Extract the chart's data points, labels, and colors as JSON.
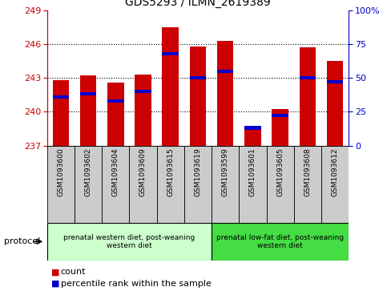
{
  "title": "GDS5293 / ILMN_2619389",
  "samples": [
    "GSM1093600",
    "GSM1093602",
    "GSM1093604",
    "GSM1093609",
    "GSM1093615",
    "GSM1093619",
    "GSM1093599",
    "GSM1093601",
    "GSM1093605",
    "GSM1093608",
    "GSM1093612"
  ],
  "counts": [
    242.8,
    243.2,
    242.55,
    243.3,
    247.5,
    245.8,
    246.3,
    238.4,
    240.2,
    245.7,
    244.5
  ],
  "percentiles": [
    36,
    38,
    33,
    40,
    68,
    50,
    55,
    13,
    22,
    50,
    47
  ],
  "ymin": 237,
  "ymax": 249,
  "yticks": [
    237,
    240,
    243,
    246,
    249
  ],
  "y2ticks_vals": [
    0,
    25,
    50,
    75,
    100
  ],
  "y2ticks_labels": [
    "0",
    "25",
    "50",
    "75",
    "100%"
  ],
  "bar_color": "#cc0000",
  "pct_color": "#0000cc",
  "group1_label": "prenatal western diet, post-weaning\nwestern diet",
  "group2_label": "prenatal low-fat diet, post-weaning\nwestern diet",
  "group1_color": "#ccffcc",
  "group2_color": "#44dd44",
  "group1_count": 6,
  "group2_count": 5,
  "protocol_label": "protocol",
  "legend_count": "count",
  "legend_pct": "percentile rank within the sample",
  "sample_box_color": "#cccccc",
  "bar_width": 0.6
}
